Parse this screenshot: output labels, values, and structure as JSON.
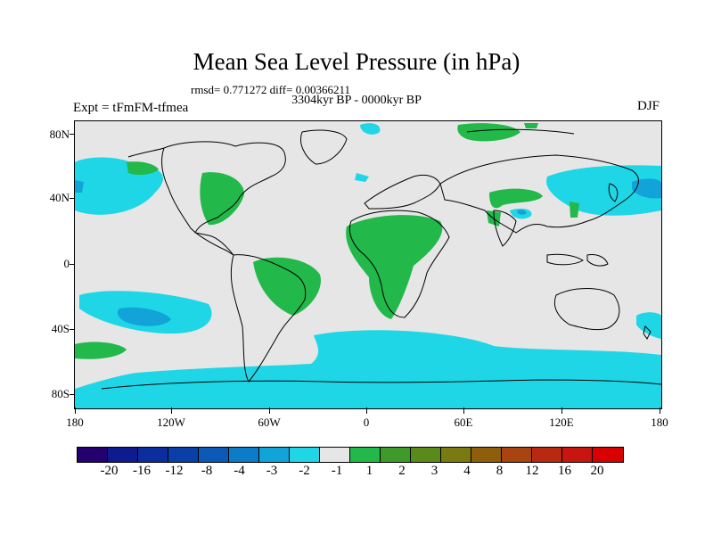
{
  "header": {
    "title": "Mean Sea Level Pressure (in hPa)",
    "stats": "rmsd= 0.771272 diff= 0.00366211",
    "period": "3304kyr BP - 0000kyr BP",
    "experiment": "Expt = tFmFM-tfmea",
    "season": "DJF"
  },
  "axes": {
    "lat_labels": [
      "80N",
      "40N",
      "0",
      "40S",
      "80S"
    ],
    "lon_labels": [
      "180",
      "120W",
      "60W",
      "0",
      "60E",
      "120E",
      "180"
    ]
  },
  "colorbar": {
    "colors": [
      "#24006e",
      "#0d1b8f",
      "#0b2d9e",
      "#0a3fa8",
      "#0b5ab8",
      "#0c7bc8",
      "#12a4d8",
      "#1fd6e6",
      "#e6e6e6",
      "#22b84a",
      "#3e9a2a",
      "#5a8a1a",
      "#7a7a10",
      "#8f5e0a",
      "#a84410",
      "#b82a10",
      "#c81510",
      "#d80000"
    ],
    "labels": [
      "-20",
      "-16",
      "-12",
      "-8",
      "-4",
      "-3",
      "-2",
      "-1",
      "1",
      "2",
      "3",
      "4",
      "8",
      "12",
      "16",
      "20"
    ]
  },
  "map_colors": {
    "background": "#e6e6e6",
    "negative_light": "#1fd6e6",
    "negative_mid": "#12a4d8",
    "positive_light": "#22b84a",
    "coast": "#000000"
  }
}
